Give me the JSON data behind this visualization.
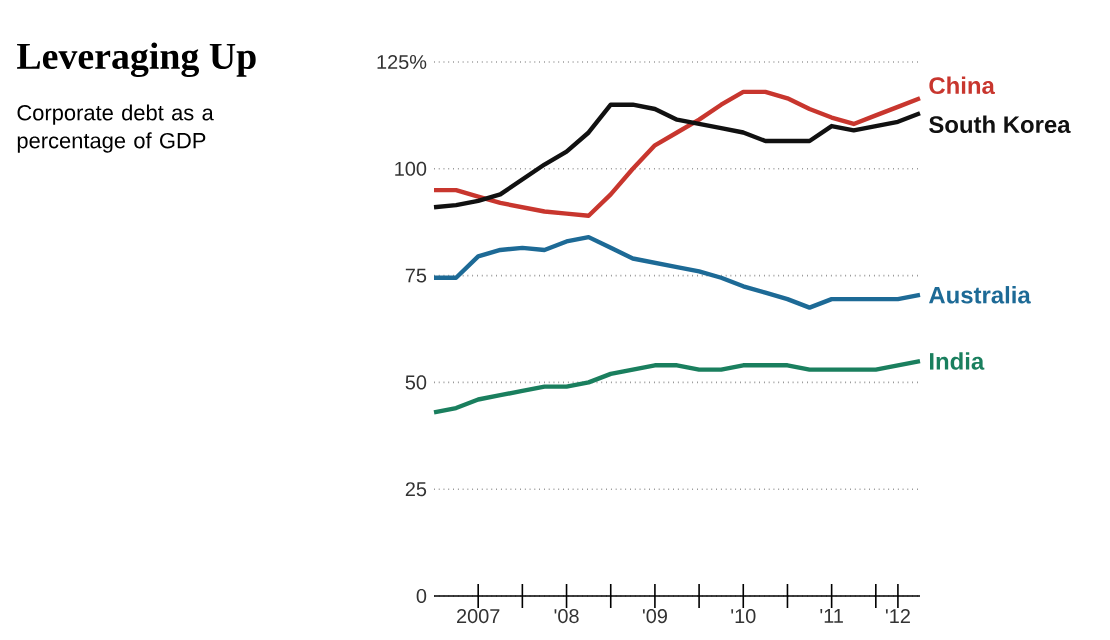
{
  "chart_data": {
    "type": "line",
    "title": "Leveraging Up",
    "subtitle": "Corporate debt as a percentage of GDP",
    "x": [
      "2007-01",
      "2007-04",
      "2007-07",
      "2007-10",
      "2008-01",
      "2008-04",
      "2008-07",
      "2008-10",
      "2009-01",
      "2009-04",
      "2009-07",
      "2009-10",
      "2010-01",
      "2010-04",
      "2010-07",
      "2010-10",
      "2011-01",
      "2011-04",
      "2011-07",
      "2011-10",
      "2012-01",
      "2012-04",
      "2012-07"
    ],
    "series": [
      {
        "name": "China",
        "color": "#c8362e",
        "values": [
          95,
          95,
          93.5,
          92,
          91,
          90,
          89.5,
          89,
          94,
          100,
          105.5,
          108.5,
          111.5,
          115,
          118,
          118,
          116.5,
          114,
          112,
          110.5,
          112.5,
          114.5,
          116.5
        ]
      },
      {
        "name": "South Korea",
        "color": "#111111",
        "values": [
          91,
          91.5,
          92.5,
          94,
          97.5,
          101,
          104,
          108.5,
          115,
          115,
          114,
          111.5,
          110.5,
          109.5,
          108.5,
          106.5,
          106.5,
          106.5,
          110,
          109,
          110,
          111,
          113
        ]
      },
      {
        "name": "Australia",
        "color": "#1d6a96",
        "values": [
          74.5,
          74.5,
          79.5,
          81,
          81.5,
          81,
          83,
          84,
          81.5,
          79,
          78,
          77,
          76,
          74.5,
          72.5,
          71,
          69.5,
          67.5,
          69.5,
          69.5,
          69.5,
          69.5,
          70.5
        ]
      },
      {
        "name": "India",
        "color": "#1a7f5e",
        "values": [
          43,
          44,
          46,
          47,
          48,
          49,
          49,
          50,
          52,
          53,
          54,
          54,
          53,
          53,
          54,
          54,
          54,
          53,
          53,
          53,
          53,
          54,
          55
        ]
      }
    ],
    "xlim": [
      "2007-01",
      "2012-07"
    ],
    "xticks": [
      {
        "value": "2007-07",
        "label": "2007"
      },
      {
        "value": "2008-01",
        "label": null
      },
      {
        "value": "2008-07",
        "label": "'08"
      },
      {
        "value": "2009-01",
        "label": null
      },
      {
        "value": "2009-07",
        "label": "'09"
      },
      {
        "value": "2010-01",
        "label": null
      },
      {
        "value": "2010-07",
        "label": "'10"
      },
      {
        "value": "2011-01",
        "label": null
      },
      {
        "value": "2011-07",
        "label": "'11"
      },
      {
        "value": "2012-01",
        "label": null
      },
      {
        "value": "2012-04",
        "label": "'12"
      }
    ],
    "ylim": [
      0,
      125
    ],
    "yticks": [
      0,
      25,
      50,
      75,
      100,
      {
        "value": 125,
        "label": "125%"
      }
    ],
    "grid": "y",
    "legend": false,
    "line_style": "solid"
  }
}
